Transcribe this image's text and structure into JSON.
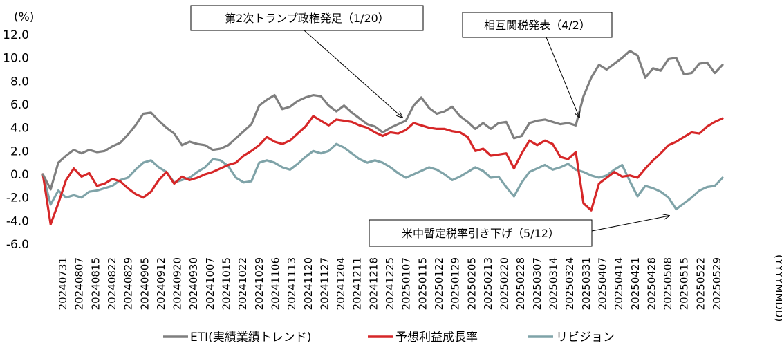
{
  "chart_data": {
    "type": "line",
    "ylabel": "(%)",
    "xlabel": "(YYYYMMDD)",
    "ylim": [
      -6,
      12
    ],
    "yticks": [
      12,
      10,
      8,
      6,
      4,
      2,
      0,
      -2,
      -4,
      -6
    ],
    "ytick_labels": [
      "12.0",
      "10.0",
      "8.0",
      "6.0",
      "4.0",
      "2.0",
      "0.0",
      "-2.0",
      "-4.0",
      "-6.0"
    ],
    "x_tick_labels": [
      "20240731",
      "20240807",
      "20240815",
      "20240822",
      "20240829",
      "20240905",
      "20240912",
      "20240920",
      "20240930",
      "20241007",
      "20241015",
      "20241022",
      "20241029",
      "20241106",
      "20241113",
      "20241120",
      "20241127",
      "20241204",
      "20241211",
      "20241218",
      "20241225",
      "20250107",
      "20250115",
      "20250122",
      "20250129",
      "20250205",
      "20250213",
      "20250220",
      "20250228",
      "20250307",
      "20250314",
      "20250324",
      "20250331",
      "20250407",
      "20250414",
      "20250421",
      "20250428",
      "20250508",
      "20250515",
      "20250522",
      "20250529"
    ],
    "series": [
      {
        "name": "ETI(実績業績トレンド)",
        "color": "#7f7f7f",
        "values": [
          0.0,
          -1.3,
          1.0,
          1.6,
          2.1,
          1.8,
          2.1,
          1.9,
          2.0,
          2.4,
          2.7,
          3.4,
          4.2,
          5.2,
          5.3,
          4.6,
          4.0,
          3.5,
          2.5,
          2.8,
          2.6,
          2.5,
          2.1,
          2.2,
          2.5,
          3.1,
          3.7,
          4.3,
          5.9,
          6.4,
          6.8,
          5.6,
          5.8,
          6.3,
          6.6,
          6.8,
          6.7,
          5.9,
          5.4,
          5.9,
          5.3,
          4.8,
          4.3,
          4.1,
          3.6,
          4.0,
          4.3,
          4.6,
          5.9,
          6.6,
          5.7,
          5.2,
          5.4,
          5.8,
          5.0,
          4.5,
          3.9,
          4.4,
          3.9,
          4.4,
          4.5,
          3.1,
          3.3,
          4.4,
          4.6,
          4.7,
          4.5,
          4.3,
          4.4,
          4.2,
          6.7,
          8.3,
          9.4,
          9.0,
          9.5,
          10.0,
          10.6,
          10.2,
          8.3,
          9.1,
          8.9,
          9.9,
          10.0,
          8.6,
          8.7,
          9.5,
          9.6,
          8.7,
          9.4
        ]
      },
      {
        "name": "予想利益成長率",
        "color": "#d62728",
        "values": [
          0.0,
          -4.3,
          -2.5,
          -0.5,
          0.5,
          -0.2,
          0.1,
          -1.0,
          -0.8,
          -0.4,
          -0.6,
          -1.2,
          -1.7,
          -2.0,
          -1.5,
          -0.5,
          0.2,
          -0.8,
          -0.2,
          -0.5,
          -0.3,
          0.0,
          0.2,
          0.5,
          0.8,
          1.0,
          1.6,
          2.0,
          2.5,
          3.2,
          2.8,
          2.6,
          2.9,
          3.5,
          4.1,
          5.0,
          4.6,
          4.2,
          4.7,
          4.6,
          4.5,
          4.2,
          4.0,
          3.6,
          3.3,
          3.6,
          3.5,
          3.8,
          4.4,
          4.2,
          4.0,
          3.9,
          3.9,
          3.7,
          3.6,
          3.2,
          2.0,
          2.2,
          1.6,
          1.7,
          1.8,
          0.5,
          1.8,
          2.9,
          2.5,
          2.9,
          2.6,
          1.5,
          1.3,
          1.9,
          -2.5,
          -3.1,
          -0.8,
          -0.3,
          0.2,
          -0.2,
          -0.1,
          -0.3,
          0.5,
          1.2,
          1.8,
          2.5,
          2.8,
          3.2,
          3.6,
          3.5,
          4.1,
          4.5,
          4.8
        ]
      },
      {
        "name": "リビジョン",
        "color": "#7fa3a8",
        "values": [
          0.0,
          -2.6,
          -1.4,
          -2.0,
          -1.8,
          -2.0,
          -1.5,
          -1.4,
          -1.2,
          -1.0,
          -0.5,
          -0.3,
          0.4,
          1.0,
          1.2,
          0.6,
          0.2,
          -0.7,
          -0.5,
          -0.3,
          0.2,
          0.6,
          1.3,
          1.2,
          0.7,
          -0.3,
          -0.7,
          -0.6,
          1.0,
          1.2,
          1.0,
          0.6,
          0.4,
          0.9,
          1.5,
          2.0,
          1.8,
          2.0,
          2.6,
          2.3,
          1.8,
          1.3,
          1.0,
          1.2,
          1.0,
          0.6,
          0.1,
          -0.3,
          0.0,
          0.3,
          0.6,
          0.4,
          0.0,
          -0.5,
          -0.2,
          0.2,
          0.6,
          0.3,
          -0.3,
          -0.2,
          -1.1,
          -1.9,
          -0.7,
          0.2,
          0.5,
          0.8,
          0.4,
          0.6,
          0.9,
          0.4,
          0.2,
          -0.1,
          -0.3,
          -0.1,
          0.4,
          0.8,
          -0.6,
          -1.9,
          -1.0,
          -1.2,
          -1.5,
          -2.0,
          -3.0,
          -2.5,
          -2.0,
          -1.4,
          -1.1,
          -1.0,
          -0.3
        ]
      }
    ],
    "annotations": [
      {
        "text": "第2次トランプ政権発足（1/20）",
        "index": 44
      },
      {
        "text": "相互関税発表（4/2）",
        "index": 69
      },
      {
        "text": "米中暫定税率引き下げ（5/12）",
        "index": 83
      }
    ]
  }
}
